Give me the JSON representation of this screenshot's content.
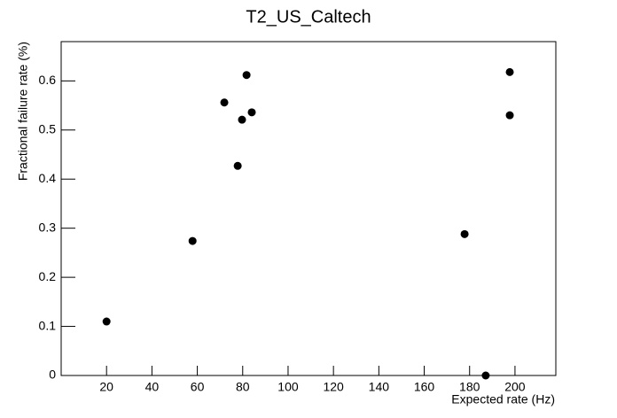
{
  "chart_data": {
    "type": "scatter",
    "title": "T2_US_Caltech",
    "x_label": "Expected rate (Hz)",
    "y_label": "Fractional failure rate (%)",
    "x": [
      20,
      57.9,
      71.9,
      77.8,
      79.7,
      81.7,
      84,
      177.8,
      187.1,
      197.7,
      197.7
    ],
    "values": [
      0.11,
      0.274,
      0.556,
      0.427,
      0.521,
      0.612,
      0.536,
      0.288,
      0,
      0.53,
      0.618
    ],
    "color": "#000000",
    "xlim": [
      0,
      218
    ],
    "xticks": [
      20,
      40,
      60,
      80,
      100,
      120,
      140,
      160,
      180,
      200
    ],
    "ylim": [
      0,
      0.68
    ],
    "yticks": [
      0,
      0.1,
      0.2,
      0.3,
      0.4,
      0.5,
      0.6
    ]
  }
}
